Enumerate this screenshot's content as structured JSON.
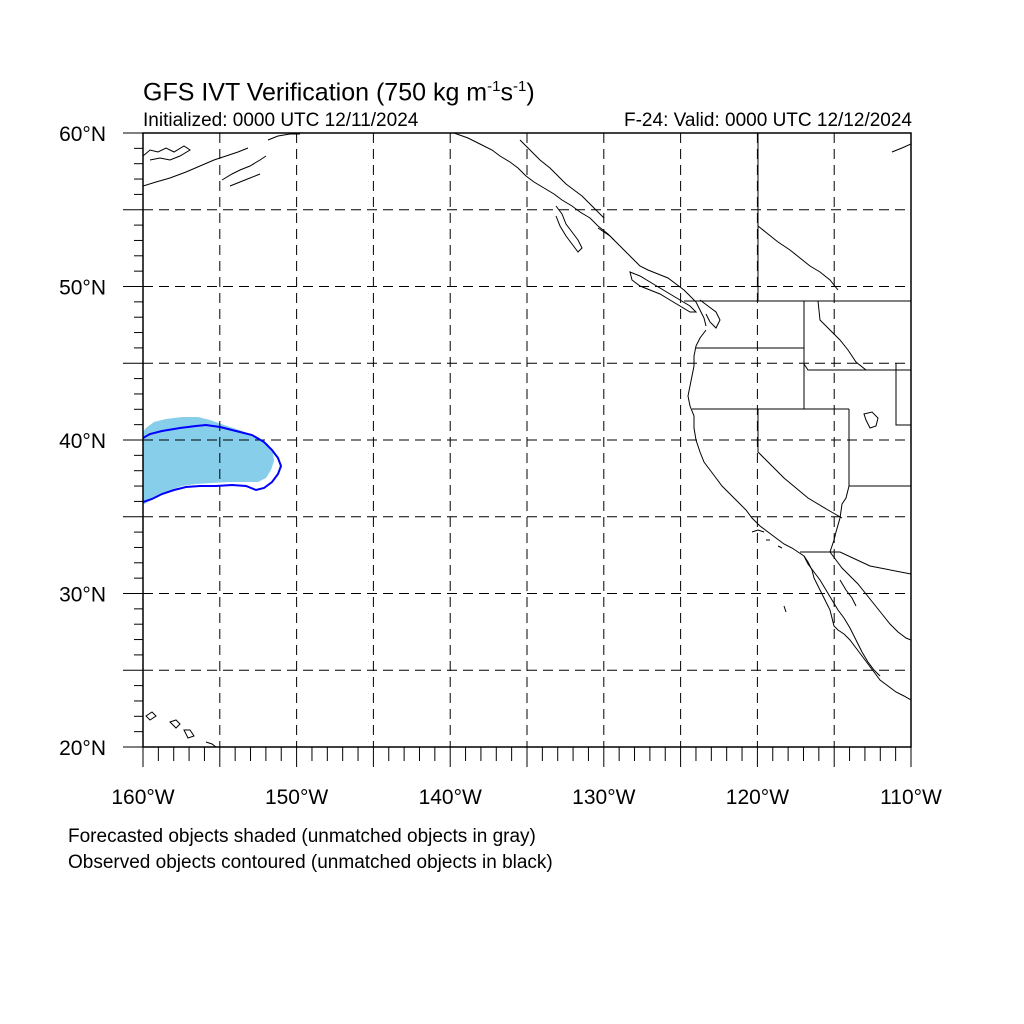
{
  "title": {
    "main": "GFS IVT Verification (750 kg m",
    "exp1": "-1",
    "mid": "s",
    "exp2": "-1",
    "end": ")"
  },
  "subtitle": {
    "left": "Initialized: 0000 UTC 12/11/2024",
    "right": "F-24: Valid: 0000 UTC 12/12/2024"
  },
  "map": {
    "lon_range": [
      -160,
      -110
    ],
    "lat_range": [
      20,
      60
    ],
    "lat_labels": [
      {
        "value": 60,
        "text": "60°N"
      },
      {
        "value": 50,
        "text": "50°N"
      },
      {
        "value": 40,
        "text": "40°N"
      },
      {
        "value": 30,
        "text": "30°N"
      },
      {
        "value": 20,
        "text": "20°N"
      }
    ],
    "lon_labels": [
      {
        "value": -160,
        "text": "160°W"
      },
      {
        "value": -150,
        "text": "150°W"
      },
      {
        "value": -140,
        "text": "140°W"
      },
      {
        "value": -130,
        "text": "130°W"
      },
      {
        "value": -120,
        "text": "120°W"
      },
      {
        "value": -110,
        "text": "110°W"
      }
    ],
    "grid_lons": [
      -155,
      -150,
      -145,
      -140,
      -135,
      -130,
      -125,
      -120,
      -115
    ],
    "grid_lats": [
      25,
      30,
      35,
      40,
      45,
      50,
      55
    ],
    "forecast_color": "#87ceeb",
    "observed_color": "#0000ff"
  },
  "caption": {
    "line1": "Forecasted objects shaded (unmatched objects in gray)",
    "line2": "Observed objects contoured (unmatched objects in black)"
  }
}
